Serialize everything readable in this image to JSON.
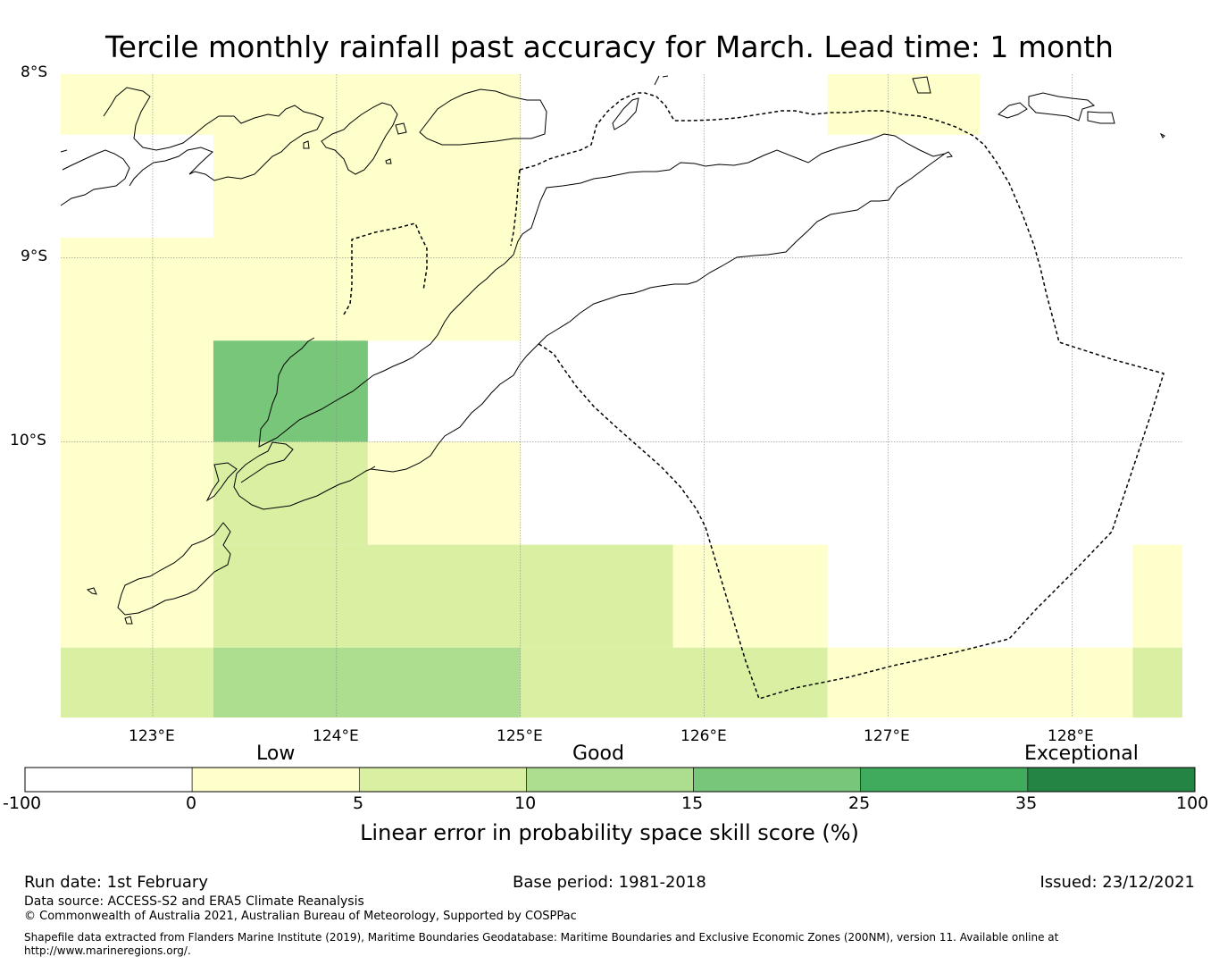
{
  "title": "Tercile monthly rainfall past accuracy for March. Lead time: 1 month",
  "map": {
    "lat_labels": [
      "8°S",
      "9°S",
      "10°S"
    ],
    "lon_labels": [
      "123°E",
      "124°E",
      "125°E",
      "126°E",
      "127°E",
      "128°E"
    ],
    "extent": {
      "lon_min": 122.5,
      "lon_max": 128.6,
      "lat_min": -11.5,
      "lat_max": -8.0
    }
  },
  "chart_data": {
    "type": "heatmap",
    "title": "Tercile monthly rainfall past accuracy for March. Lead time: 1 month",
    "colorbar_title": "Linear error in probability space skill score (%)",
    "boundaries": [
      -100,
      0,
      5,
      10,
      15,
      25,
      35,
      100
    ],
    "tick_labels": [
      "-100",
      "0",
      "5",
      "10",
      "15",
      "25",
      "35",
      "100"
    ],
    "category_labels": [
      "Low",
      "Good",
      "Exceptional"
    ],
    "bin_colors": [
      "#ffffff",
      "#ffffcc",
      "#d9f0a3",
      "#addd8e",
      "#78c679",
      "#41ab5d",
      "#238443"
    ],
    "cells": [
      {
        "lon": [
          122.5,
          123.33
        ],
        "lat": [
          -8.33,
          -8.0
        ],
        "bin": 1
      },
      {
        "lon": [
          123.33,
          125.0
        ],
        "lat": [
          -8.33,
          -8.0
        ],
        "bin": 1
      },
      {
        "lon": [
          122.5,
          123.33
        ],
        "lat": [
          -8.89,
          -8.33
        ],
        "bin": 0
      },
      {
        "lon": [
          123.33,
          125.0
        ],
        "lat": [
          -8.89,
          -8.33
        ],
        "bin": 1
      },
      {
        "lon": [
          126.67,
          127.5
        ],
        "lat": [
          -8.33,
          -8.0
        ],
        "bin": 1
      },
      {
        "lon": [
          122.5,
          123.33
        ],
        "lat": [
          -9.45,
          -8.89
        ],
        "bin": 1
      },
      {
        "lon": [
          123.33,
          125.0
        ],
        "lat": [
          -9.45,
          -8.89
        ],
        "bin": 1
      },
      {
        "lon": [
          122.5,
          123.33
        ],
        "lat": [
          -10.0,
          -9.45
        ],
        "bin": 1
      },
      {
        "lon": [
          123.33,
          124.17
        ],
        "lat": [
          -10.0,
          -9.45
        ],
        "bin": 4
      },
      {
        "lon": [
          122.5,
          123.33
        ],
        "lat": [
          -10.56,
          -10.0
        ],
        "bin": 1
      },
      {
        "lon": [
          123.33,
          124.17
        ],
        "lat": [
          -10.56,
          -10.0
        ],
        "bin": 2
      },
      {
        "lon": [
          124.17,
          125.0
        ],
        "lat": [
          -10.56,
          -10.0
        ],
        "bin": 1
      },
      {
        "lon": [
          122.5,
          123.33
        ],
        "lat": [
          -11.12,
          -10.56
        ],
        "bin": 1
      },
      {
        "lon": [
          123.33,
          125.83
        ],
        "lat": [
          -11.12,
          -10.56
        ],
        "bin": 2
      },
      {
        "lon": [
          125.83,
          126.67
        ],
        "lat": [
          -11.12,
          -10.56
        ],
        "bin": 1
      },
      {
        "lon": [
          128.33,
          128.6
        ],
        "lat": [
          -11.12,
          -10.56
        ],
        "bin": 1
      },
      {
        "lon": [
          122.5,
          123.33
        ],
        "lat": [
          -11.5,
          -11.12
        ],
        "bin": 2
      },
      {
        "lon": [
          123.33,
          125.0
        ],
        "lat": [
          -11.5,
          -11.12
        ],
        "bin": 3
      },
      {
        "lon": [
          125.0,
          126.67
        ],
        "lat": [
          -11.5,
          -11.12
        ],
        "bin": 2
      },
      {
        "lon": [
          126.67,
          128.33
        ],
        "lat": [
          -11.5,
          -11.12
        ],
        "bin": 1
      },
      {
        "lon": [
          128.33,
          128.6
        ],
        "lat": [
          -11.5,
          -11.12
        ],
        "bin": 2
      }
    ]
  },
  "footer": {
    "run_date": "Run date: 1st February",
    "base_period": "Base period: 1981-2018",
    "issued": "Issued: 23/12/2021",
    "data_source": "Data source: ACCESS-S2 and ERA5 Climate Reanalysis",
    "copyright": "© Commonwealth of Australia 2021, Australian Bureau of Meteorology, Supported by COSPPac",
    "shapefile_line1": "Shapefile data extracted from Flanders Marine Institute (2019), Maritime Boundaries Geodatabase: Maritime Boundaries and Exclusive Economic Zones (200NM), version 11. Available online at",
    "shapefile_line2": "http://www.marineregions.org/."
  }
}
